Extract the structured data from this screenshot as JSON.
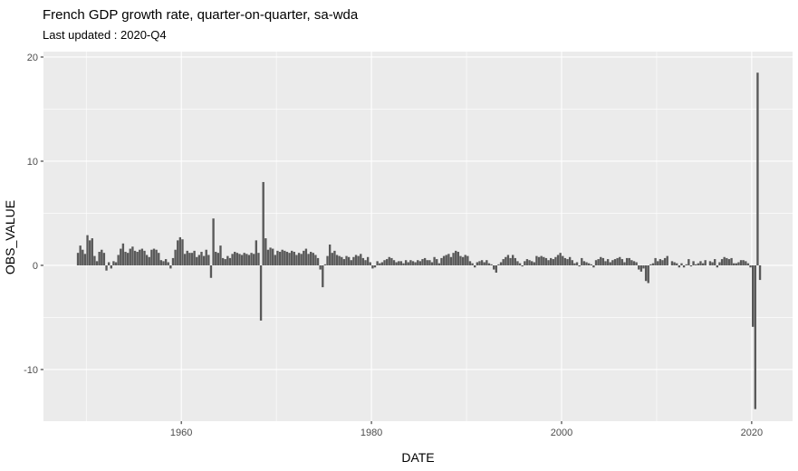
{
  "chart_data": {
    "type": "bar",
    "title": "French GDP growth rate, quarter-on-quarter, sa-wda",
    "subtitle": "Last updated : 2020-Q4",
    "xlabel": "DATE",
    "ylabel": "OBS_VALUE",
    "legend": "none",
    "grid": "on",
    "panel_bg": "#EBEBEB",
    "grid_color": "#FFFFFF",
    "bar_color": "#595959",
    "tick_mark_color": "#333333",
    "tick_label_color": "#4D4D4D",
    "xlim": [
      1945.5,
      2024.3
    ],
    "ylim": [
      -14.96,
      20.52
    ],
    "xticks_major": [
      1960,
      1980,
      2000,
      2020
    ],
    "xticks_minor": [
      1950,
      1970,
      1990,
      2010
    ],
    "yticks_major": [
      -10,
      0,
      10,
      20
    ],
    "yticks_minor": [
      -5,
      5,
      15
    ],
    "x_tick_labels": [
      "1960",
      "1980",
      "2000",
      "2020"
    ],
    "y_tick_labels": [
      "-10",
      "0",
      "10",
      "20"
    ],
    "series_name": "OBS_VALUE",
    "frequency": "quarterly",
    "start_period": "1949-Q1",
    "end_period": "2020-Q4",
    "start_year": 1949,
    "values": [
      1.2,
      1.9,
      1.5,
      1.1,
      2.9,
      2.4,
      2.6,
      0.9,
      0.4,
      1.3,
      1.5,
      1.2,
      -0.5,
      0.3,
      -0.3,
      0.4,
      0.3,
      1.0,
      1.6,
      2.1,
      1.3,
      1.2,
      1.6,
      1.8,
      1.4,
      1.3,
      1.5,
      1.6,
      1.4,
      1.0,
      0.8,
      1.5,
      1.6,
      1.5,
      1.2,
      0.5,
      0.4,
      0.6,
      0.3,
      -0.3,
      0.7,
      1.5,
      2.4,
      2.7,
      2.5,
      1.1,
      1.4,
      1.2,
      1.2,
      1.4,
      0.8,
      1.0,
      1.3,
      0.9,
      1.5,
      1.0,
      -1.2,
      4.5,
      1.3,
      1.2,
      1.9,
      0.7,
      0.6,
      0.9,
      0.7,
      1.1,
      1.3,
      1.2,
      1.1,
      1.0,
      1.2,
      1.1,
      1.0,
      1.2,
      1.1,
      2.4,
      1.2,
      -5.3,
      8.0,
      2.6,
      1.5,
      1.7,
      1.6,
      1.0,
      1.4,
      1.3,
      1.5,
      1.4,
      1.3,
      1.2,
      1.4,
      1.3,
      1.0,
      1.2,
      1.1,
      1.4,
      1.6,
      1.1,
      1.3,
      1.2,
      1.0,
      0.7,
      -0.4,
      -2.1,
      0.1,
      0.9,
      2.0,
      1.2,
      1.4,
      1.0,
      0.9,
      0.8,
      0.6,
      0.9,
      0.8,
      0.5,
      0.8,
      1.0,
      0.9,
      1.1,
      0.7,
      0.5,
      0.8,
      0.3,
      -0.3,
      -0.2,
      0.4,
      0.2,
      0.3,
      0.5,
      0.6,
      0.8,
      0.7,
      0.5,
      0.3,
      0.4,
      0.4,
      0.2,
      0.5,
      0.3,
      0.5,
      0.4,
      0.3,
      0.5,
      0.4,
      0.6,
      0.7,
      0.5,
      0.5,
      0.3,
      0.8,
      0.6,
      0.2,
      0.7,
      0.9,
      1.0,
      1.1,
      0.8,
      1.2,
      1.4,
      1.3,
      0.9,
      0.8,
      1.0,
      0.9,
      0.4,
      0.2,
      -0.2,
      0.3,
      0.4,
      0.5,
      0.3,
      0.5,
      0.2,
      0.1,
      -0.4,
      -0.7,
      0.1,
      0.3,
      0.6,
      0.8,
      1.0,
      0.7,
      1.0,
      0.7,
      0.4,
      0.2,
      -0.1,
      0.4,
      0.6,
      0.5,
      0.4,
      0.3,
      0.9,
      0.8,
      0.9,
      0.8,
      0.7,
      0.5,
      0.7,
      0.6,
      0.8,
      1.0,
      1.2,
      0.9,
      0.7,
      0.6,
      0.8,
      0.5,
      0.2,
      0.3,
      -0.1,
      0.7,
      0.4,
      0.3,
      0.2,
      0.1,
      -0.2,
      0.5,
      0.6,
      0.8,
      0.7,
      0.4,
      0.6,
      0.3,
      0.5,
      0.6,
      0.7,
      0.8,
      0.6,
      0.3,
      0.7,
      0.7,
      0.5,
      0.4,
      0.3,
      -0.4,
      -0.6,
      -0.3,
      -1.5,
      -1.7,
      0.1,
      0.2,
      0.7,
      0.4,
      0.6,
      0.5,
      0.7,
      0.9,
      0.0,
      0.4,
      0.3,
      0.2,
      -0.2,
      0.2,
      -0.2,
      0.1,
      0.6,
      -0.1,
      0.4,
      0.1,
      0.2,
      0.4,
      0.2,
      0.5,
      0.0,
      0.4,
      0.3,
      0.6,
      -0.2,
      0.3,
      0.6,
      0.8,
      0.7,
      0.6,
      0.7,
      0.2,
      0.2,
      0.3,
      0.5,
      0.5,
      0.4,
      0.2,
      -0.2,
      -5.9,
      -13.8,
      18.5,
      -1.4
    ]
  }
}
